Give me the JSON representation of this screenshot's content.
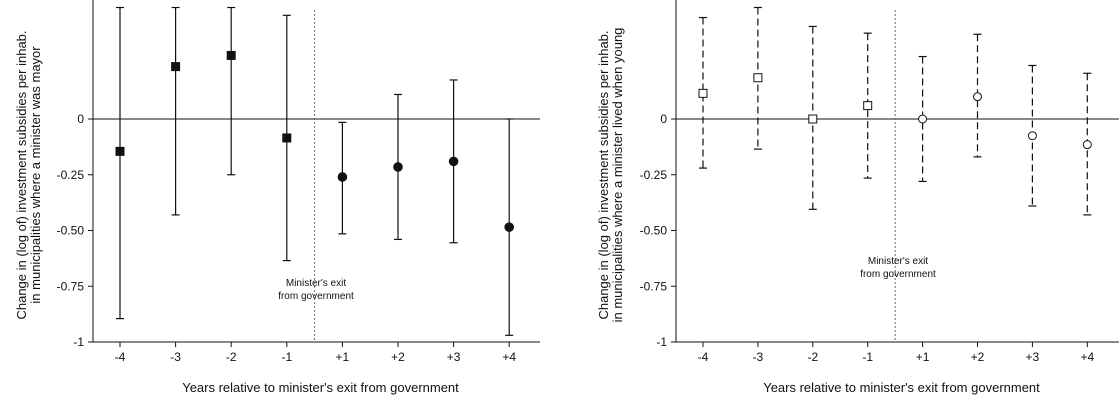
{
  "chart_data": [
    {
      "type": "scatter",
      "subtype": "event-study point estimates with confidence intervals",
      "xlabel": "Years relative to minister's exit from government",
      "ylabel_line1": "Change in (log of) investment subsidies per inhab.",
      "ylabel_line2": "in municipalities where a minister was mayor",
      "categories": [
        "-4",
        "-3",
        "-2",
        "-1",
        "+1",
        "+2",
        "+3",
        "+4"
      ],
      "ylim": [
        -1,
        0.5
      ],
      "yticks": [
        0,
        -0.25,
        -0.5,
        -0.75,
        -1
      ],
      "ytick_labels": [
        "0",
        "-0.25",
        "-0.50",
        "-0.75",
        "-1"
      ],
      "series": [
        {
          "marker": "filled-square-before / filled-circle-after",
          "values": [
            -0.145,
            0.235,
            0.285,
            -0.085,
            -0.26,
            -0.215,
            -0.19,
            -0.485
          ],
          "ci_low": [
            -0.895,
            -0.43,
            -0.25,
            -0.635,
            -0.515,
            -0.54,
            -0.555,
            -0.97
          ],
          "ci_high": [
            0.5,
            0.5,
            0.5,
            0.465,
            -0.015,
            0.11,
            0.175,
            0.0
          ]
        }
      ],
      "annotation_line1": "Minister's exit",
      "annotation_line2": "from government",
      "zero_line": true,
      "grid": false
    },
    {
      "type": "scatter",
      "subtype": "event-study point estimates with confidence intervals",
      "xlabel": "Years relative to minister's exit from government",
      "ylabel_line1": "Change in (log of) investment subsidies per inhab.",
      "ylabel_line2": "in municipalities where a minister lived when young",
      "categories": [
        "-4",
        "-3",
        "-2",
        "-1",
        "+1",
        "+2",
        "+3",
        "+4"
      ],
      "ylim": [
        -1,
        0.5
      ],
      "yticks": [
        0,
        -0.25,
        -0.5,
        -0.75,
        -1
      ],
      "ytick_labels": [
        "0",
        "-0.25",
        "-0.50",
        "-0.75",
        "-1"
      ],
      "series": [
        {
          "marker": "hollow-square-before / hollow-circle-after",
          "values": [
            0.115,
            0.185,
            0.0,
            0.06,
            0.0,
            0.1,
            -0.075,
            -0.115
          ],
          "ci_low": [
            -0.22,
            -0.135,
            -0.405,
            -0.265,
            -0.28,
            -0.17,
            -0.39,
            -0.43
          ],
          "ci_high": [
            0.455,
            0.5,
            0.415,
            0.385,
            0.28,
            0.38,
            0.24,
            0.205
          ]
        }
      ],
      "annotation_line1": "Minister's exit",
      "annotation_line2": "from government",
      "zero_line": true,
      "grid": false
    }
  ]
}
